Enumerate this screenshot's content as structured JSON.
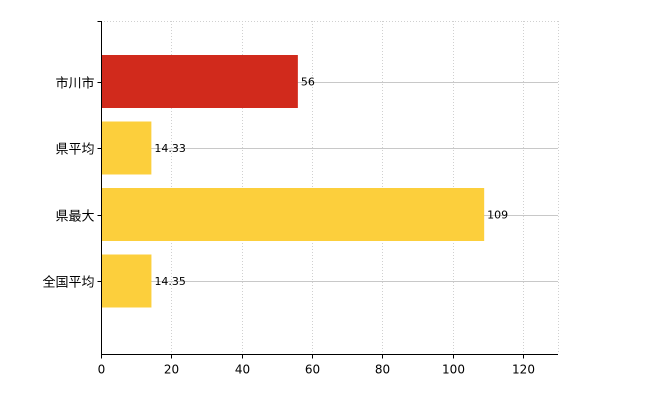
{
  "chart_data": {
    "type": "bar",
    "orientation": "horizontal",
    "categories": [
      "市川市",
      "県平均",
      "県最大",
      "全国平均"
    ],
    "values": [
      56,
      14.33,
      109,
      14.35
    ],
    "value_labels": [
      "56",
      "14.33",
      "109",
      "14.35"
    ],
    "colors": [
      "#d12a1c",
      "#fccf3c",
      "#fccf3c",
      "#fccf3c"
    ],
    "xlim": [
      0,
      130
    ],
    "xticks": [
      0,
      20,
      40,
      60,
      80,
      100,
      120
    ],
    "xtick_labels": [
      "0",
      "20",
      "40",
      "60",
      "80",
      "100",
      "120"
    ],
    "grid": true,
    "legend": "none"
  }
}
